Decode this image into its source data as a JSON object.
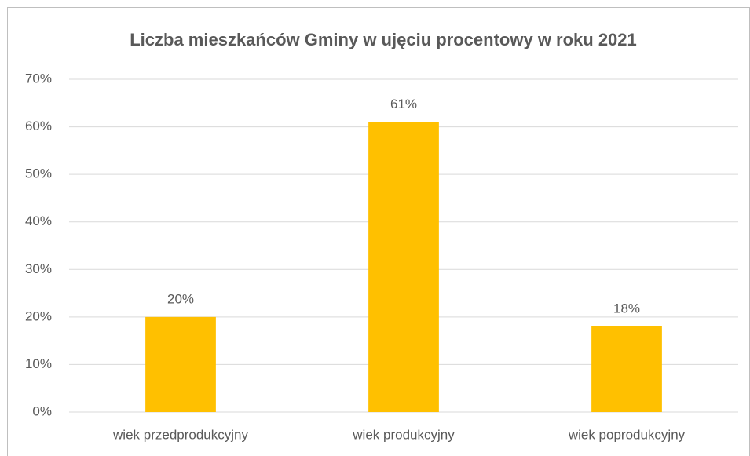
{
  "chart_data": {
    "type": "bar",
    "title": "Liczba mieszkańców Gminy w ujęciu procentowy w roku 2021",
    "categories": [
      "wiek przedprodukcyjny",
      "wiek produkcyjny",
      "wiek poprodukcyjny"
    ],
    "values": [
      20,
      61,
      18
    ],
    "value_labels": [
      "20%",
      "61%",
      "18%"
    ],
    "color": "#ffc000",
    "ylim": [
      0,
      70
    ],
    "yticks": [
      {
        "value": 0,
        "label": "0%"
      },
      {
        "value": 10,
        "label": "10%"
      },
      {
        "value": 20,
        "label": "20%"
      },
      {
        "value": 30,
        "label": "30%"
      },
      {
        "value": 40,
        "label": "40%"
      },
      {
        "value": 50,
        "label": "50%"
      },
      {
        "value": 60,
        "label": "60%"
      },
      {
        "value": 70,
        "label": "70%"
      }
    ],
    "grid": true
  }
}
